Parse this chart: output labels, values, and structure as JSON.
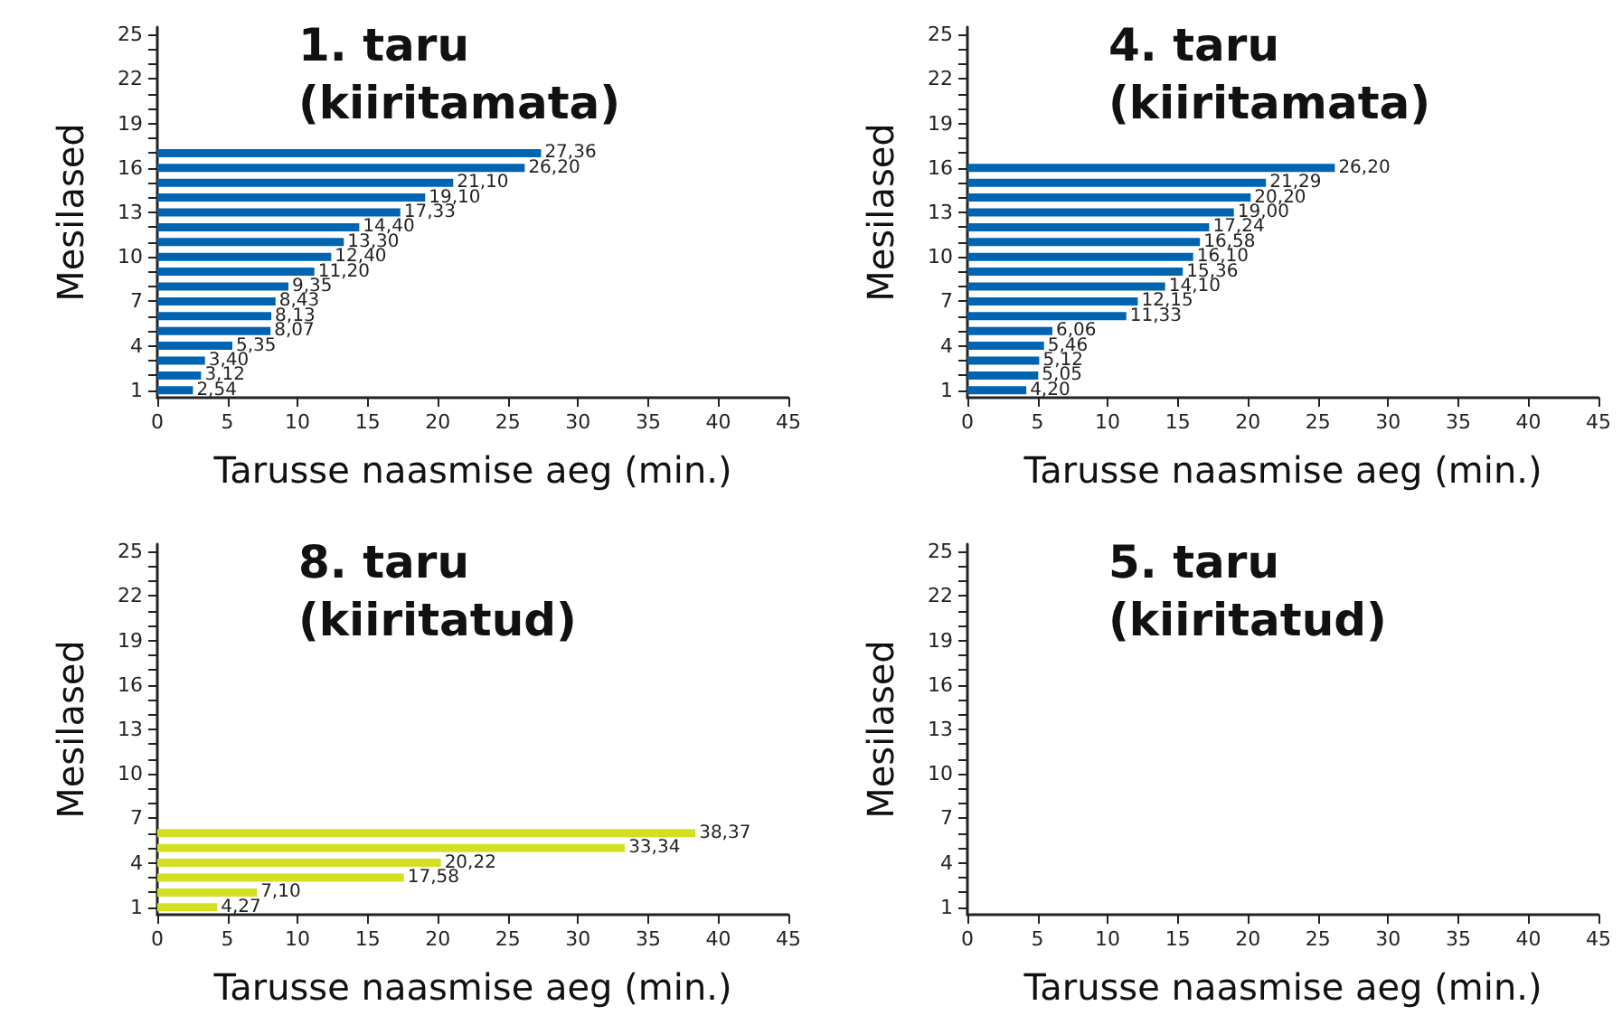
{
  "chart_data": [
    {
      "type": "bar",
      "orientation": "horizontal",
      "title": "1. taru\n(kiiritamata)",
      "xlabel": "Tarusse naasmise aeg (min.)",
      "ylabel": "Mesilased",
      "color": "#0064b0",
      "grid": false,
      "xlim": [
        0,
        45
      ],
      "xticks": [
        0,
        5,
        10,
        15,
        20,
        25,
        30,
        35,
        40,
        45
      ],
      "categories": [
        "25",
        null,
        null,
        "22",
        null,
        null,
        "19",
        null,
        null,
        "16",
        null,
        null,
        "13",
        null,
        null,
        "10",
        null,
        null,
        "7",
        null,
        null,
        "4",
        null,
        null,
        "1"
      ],
      "values": [
        null,
        null,
        null,
        null,
        null,
        null,
        null,
        null,
        27.36,
        26.2,
        21.1,
        19.1,
        17.33,
        14.4,
        13.3,
        12.4,
        11.2,
        9.35,
        8.43,
        8.13,
        8.07,
        5.35,
        3.4,
        3.12,
        2.54
      ],
      "value_labels": [
        null,
        null,
        null,
        null,
        null,
        null,
        null,
        null,
        "27,36",
        "26,20",
        "21,10",
        "19,10",
        "17,33",
        "14,40",
        "13,30",
        "12,40",
        "11,20",
        "9,35",
        "8,43",
        "8,13",
        "8,07",
        "5,35",
        "3,40",
        "3,12",
        "2,54"
      ]
    },
    {
      "type": "bar",
      "orientation": "horizontal",
      "title": "4. taru\n(kiiritamata)",
      "xlabel": "Tarusse naasmise aeg (min.)",
      "ylabel": "Mesilased",
      "color": "#0064b0",
      "grid": false,
      "xlim": [
        0,
        45
      ],
      "xticks": [
        0,
        5,
        10,
        15,
        20,
        25,
        30,
        35,
        40,
        45
      ],
      "categories": [
        "25",
        null,
        null,
        "22",
        null,
        null,
        "19",
        null,
        null,
        "16",
        null,
        null,
        "13",
        null,
        null,
        "10",
        null,
        null,
        "7",
        null,
        null,
        "4",
        null,
        null,
        "1"
      ],
      "values": [
        null,
        null,
        null,
        null,
        null,
        null,
        null,
        null,
        null,
        26.2,
        21.29,
        20.2,
        19.0,
        17.24,
        16.58,
        16.1,
        15.36,
        14.1,
        12.15,
        11.33,
        6.06,
        5.46,
        5.12,
        5.05,
        4.2
      ],
      "value_labels": [
        null,
        null,
        null,
        null,
        null,
        null,
        null,
        null,
        null,
        "26,20",
        "21,29",
        "20,20",
        "19,00",
        "17,24",
        "16,58",
        "16,10",
        "15,36",
        "14,10",
        "12,15",
        "11,33",
        "6,06",
        "5,46",
        "5,12",
        "5,05",
        "4,20"
      ]
    },
    {
      "type": "bar",
      "orientation": "horizontal",
      "title": "8. taru\n(kiiritatud)",
      "xlabel": "Tarusse naasmise aeg (min.)",
      "ylabel": "Mesilased",
      "color": "#d4df22",
      "grid": false,
      "xlim": [
        0,
        45
      ],
      "xticks": [
        0,
        5,
        10,
        15,
        20,
        25,
        30,
        35,
        40,
        45
      ],
      "categories": [
        "25",
        null,
        null,
        "22",
        null,
        null,
        "19",
        null,
        null,
        "16",
        null,
        null,
        "13",
        null,
        null,
        "10",
        null,
        null,
        "7",
        null,
        null,
        "4",
        null,
        null,
        "1"
      ],
      "values": [
        null,
        null,
        null,
        null,
        null,
        null,
        null,
        null,
        null,
        null,
        null,
        null,
        null,
        null,
        null,
        null,
        null,
        null,
        null,
        38.37,
        33.34,
        20.22,
        17.58,
        7.1,
        4.27
      ],
      "value_labels": [
        null,
        null,
        null,
        null,
        null,
        null,
        null,
        null,
        null,
        null,
        null,
        null,
        null,
        null,
        null,
        null,
        null,
        null,
        null,
        "38,37",
        "33,34",
        "20,22",
        "17,58",
        "7,10",
        "4,27"
      ]
    },
    {
      "type": "bar",
      "orientation": "horizontal",
      "title": "5. taru\n(kiiritatud)",
      "xlabel": "Tarusse naasmise aeg (min.)",
      "ylabel": "Mesilased",
      "grid": false,
      "xlim": [
        0,
        45
      ],
      "xticks": [
        0,
        5,
        10,
        15,
        20,
        25,
        30,
        35,
        40,
        45
      ],
      "categories": [
        "25",
        null,
        null,
        "22",
        null,
        null,
        "19",
        null,
        null,
        "16",
        null,
        null,
        "13",
        null,
        null,
        "10",
        null,
        null,
        "7",
        null,
        null,
        "4",
        null,
        null,
        "1"
      ],
      "values": [
        null,
        null,
        null,
        null,
        null,
        null,
        null,
        null,
        null,
        null,
        null,
        null,
        null,
        null,
        null,
        null,
        null,
        null,
        null,
        null,
        null,
        null,
        null,
        null,
        null
      ]
    }
  ]
}
